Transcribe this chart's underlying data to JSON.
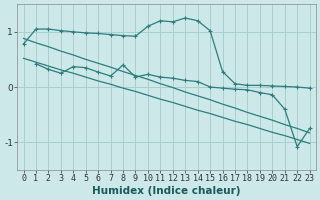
{
  "title": "",
  "xlabel": "Humidex (Indice chaleur)",
  "bg_color": "#cce8e8",
  "grid_color": "#aacfcf",
  "line_color": "#2d7d7d",
  "x_values": [
    0,
    1,
    2,
    3,
    4,
    5,
    6,
    7,
    8,
    9,
    10,
    11,
    12,
    13,
    14,
    15,
    16,
    17,
    18,
    19,
    20,
    21,
    22,
    23
  ],
  "line1": [
    0.78,
    1.05,
    1.05,
    1.02,
    1.0,
    0.98,
    0.97,
    0.95,
    0.93,
    0.92,
    1.1,
    1.2,
    1.18,
    1.25,
    1.2,
    1.02,
    0.28,
    0.06,
    0.03,
    0.03,
    0.02,
    0.01,
    0.0,
    -0.02
  ],
  "line2": [
    null,
    0.42,
    0.32,
    0.25,
    0.37,
    0.35,
    0.27,
    0.2,
    0.4,
    0.18,
    0.23,
    0.18,
    0.16,
    0.12,
    0.1,
    0.0,
    -0.02,
    -0.04,
    -0.05,
    -0.1,
    -0.14,
    -0.4,
    -1.08,
    -0.75
  ],
  "regression1": [
    0.88,
    0.8,
    0.73,
    0.65,
    0.58,
    0.5,
    0.43,
    0.36,
    0.28,
    0.21,
    0.14,
    0.06,
    -0.01,
    -0.09,
    -0.16,
    -0.23,
    -0.31,
    -0.38,
    -0.46,
    -0.53,
    -0.6,
    -0.68,
    -0.75,
    -0.83
  ],
  "regression2": [
    0.52,
    0.45,
    0.38,
    0.31,
    0.25,
    0.18,
    0.11,
    0.05,
    -0.02,
    -0.08,
    -0.15,
    -0.22,
    -0.28,
    -0.35,
    -0.42,
    -0.48,
    -0.55,
    -0.62,
    -0.68,
    -0.75,
    -0.82,
    -0.88,
    -0.95,
    -1.02
  ],
  "ylim": [
    -1.5,
    1.5
  ],
  "yticks": [
    -1,
    0,
    1
  ],
  "xlim": [
    -0.5,
    23.5
  ],
  "tick_fontsize": 6.0,
  "xlabel_fontsize": 7.5
}
